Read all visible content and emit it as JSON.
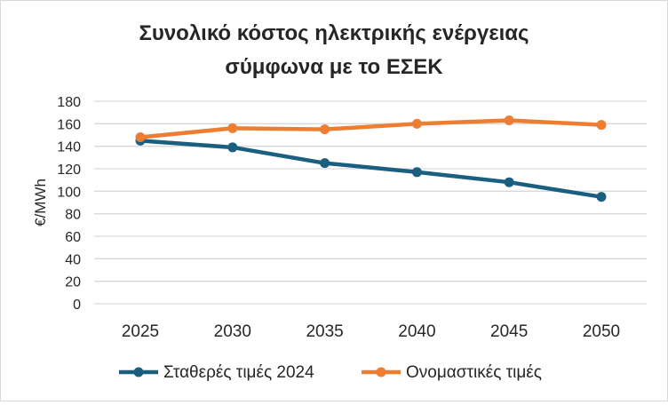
{
  "chart_data": {
    "type": "line",
    "title_lines": [
      "Συνολικό κόστος ηλεκτρικής ενέργειας",
      "σύμφωνα με το ΕΣΕΚ"
    ],
    "xlabel": "",
    "ylabel": "€/MWh",
    "categories": [
      "2025",
      "2030",
      "2035",
      "2040",
      "2045",
      "2050"
    ],
    "ylim": [
      0,
      180
    ],
    "yticks": [
      0,
      20,
      40,
      60,
      80,
      100,
      120,
      140,
      160,
      180
    ],
    "grid": true,
    "legend_position": "bottom",
    "series": [
      {
        "name": "Σταθερές τιμές 2024",
        "color": "#1a5e80",
        "values": [
          145,
          139,
          125,
          117,
          108,
          95
        ]
      },
      {
        "name": "Ονομαστικές τιμές",
        "color": "#ed7d31",
        "values": [
          148,
          156,
          155,
          160,
          163,
          159
        ]
      }
    ]
  }
}
